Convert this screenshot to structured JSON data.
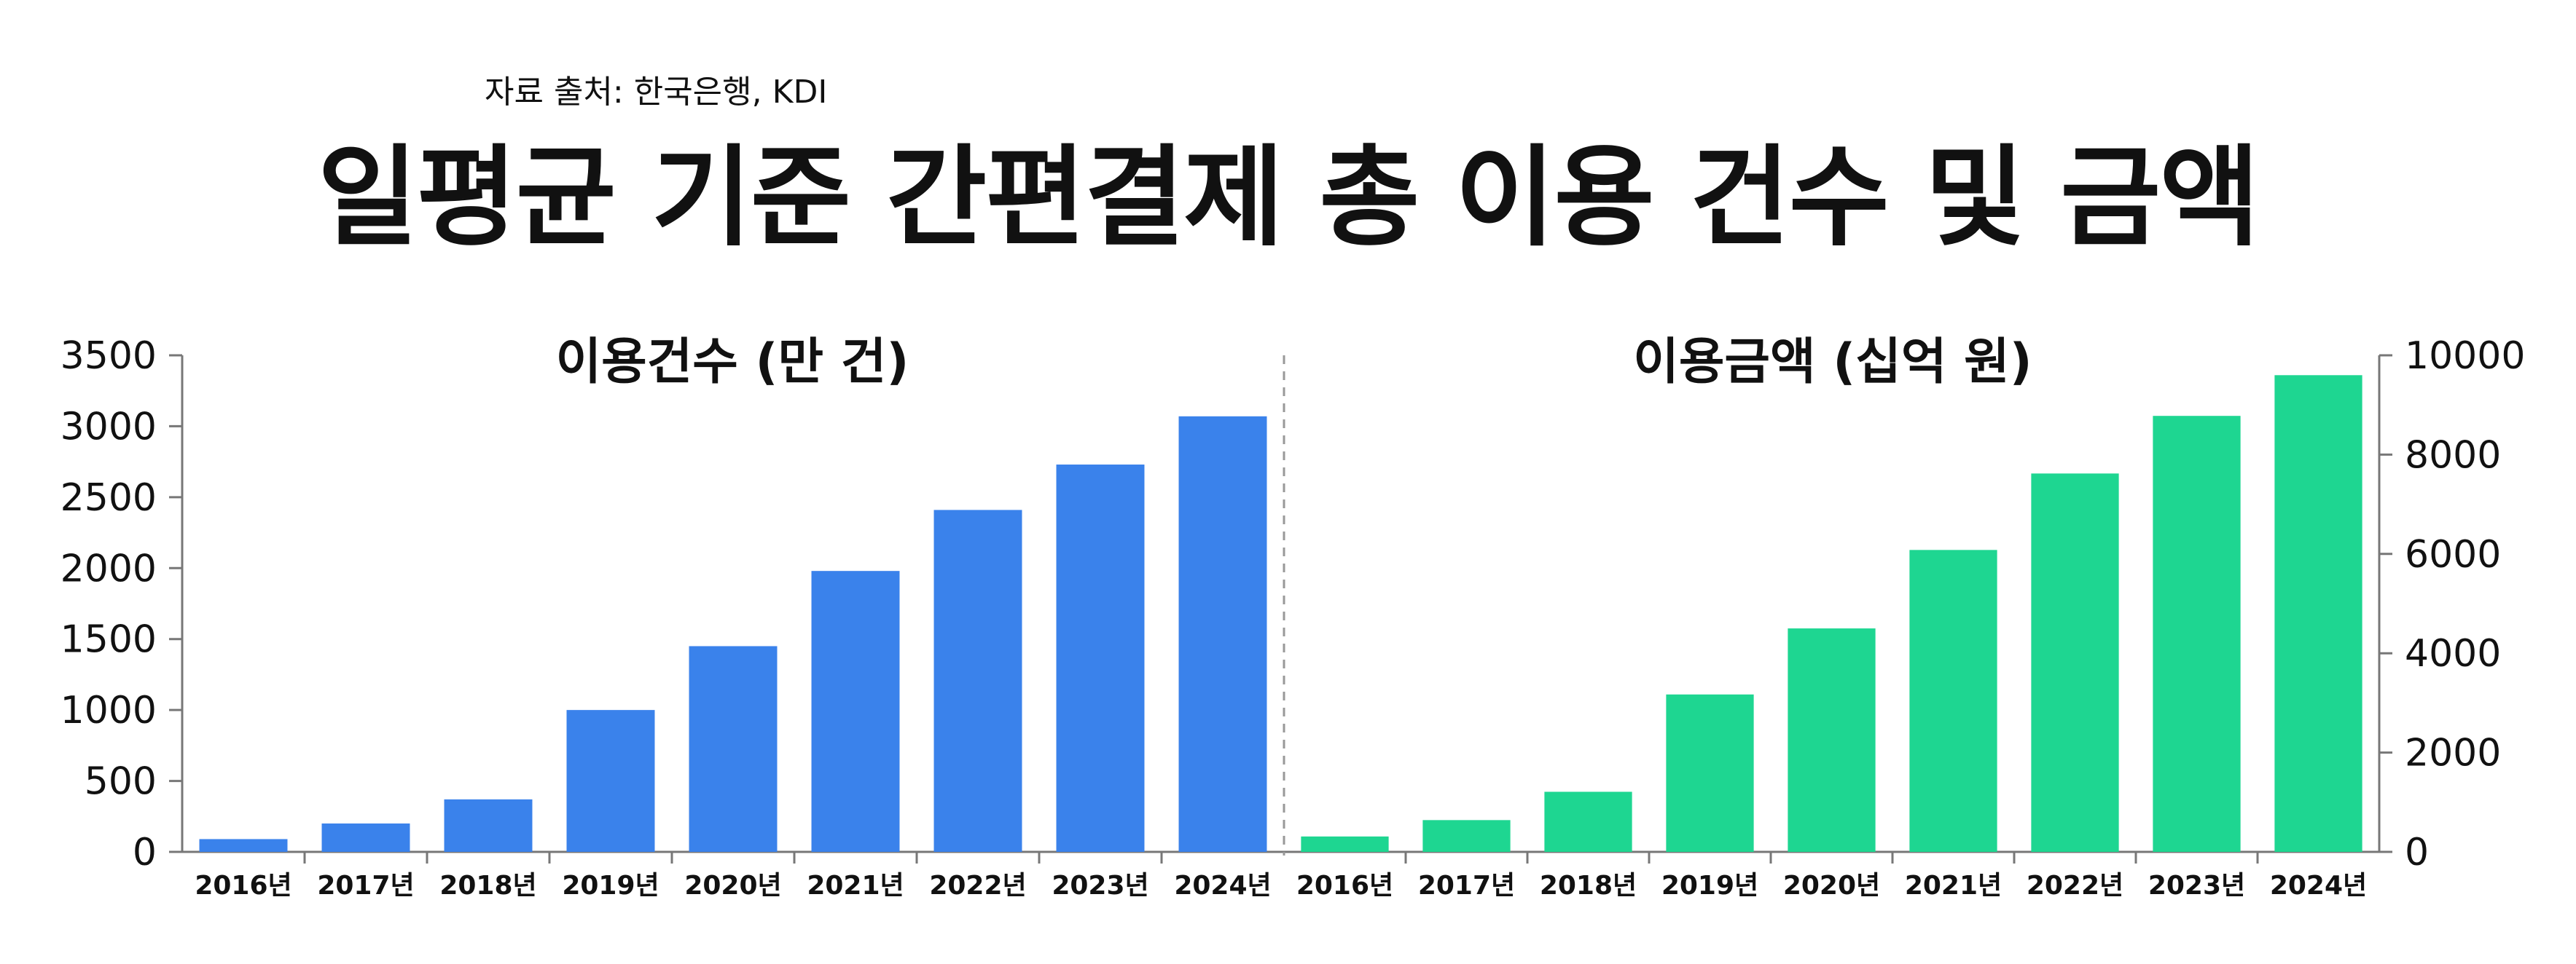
{
  "source_text": "자료 출처: 한국은행, KDI",
  "title": "일평균 기준 간편결제 총 이용 건수 및 금액",
  "chart_data": [
    {
      "type": "bar",
      "title": "이용건수 (만 건)",
      "color": "#3A82EB",
      "axis": "left",
      "categories": [
        "2016년",
        "2017년",
        "2018년",
        "2019년",
        "2020년",
        "2021년",
        "2022년",
        "2023년",
        "2024년"
      ],
      "values": [
        90,
        200,
        370,
        1000,
        1450,
        1980,
        2410,
        2730,
        3070
      ],
      "ylim": [
        0,
        3500
      ],
      "yticks": [
        "0",
        "500",
        "1000",
        "1500",
        "2000",
        "2500",
        "3000",
        "3500"
      ]
    },
    {
      "type": "bar",
      "title": "이용금액 (십억 원)",
      "color": "#1ED691",
      "axis": "right",
      "categories": [
        "2016년",
        "2017년",
        "2018년",
        "2019년",
        "2020년",
        "2021년",
        "2022년",
        "2023년",
        "2024년"
      ],
      "values": [
        310,
        640,
        1210,
        3170,
        4500,
        6080,
        7620,
        8780,
        9600
      ],
      "ylim": [
        0,
        10000
      ],
      "yticks": [
        "0",
        "2000",
        "4000",
        "6000",
        "8000",
        "10000"
      ]
    }
  ]
}
